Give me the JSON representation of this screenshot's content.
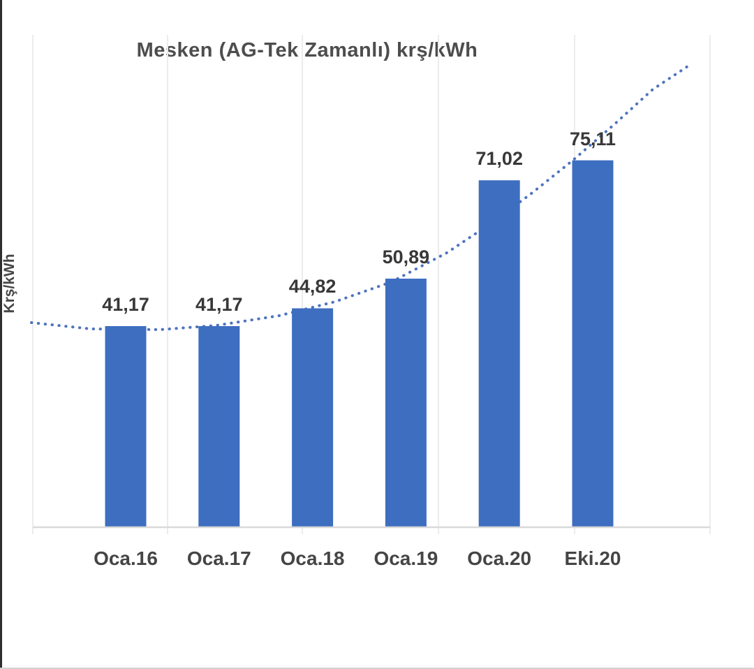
{
  "chart_data": {
    "type": "bar",
    "title": "Mesken (AG-Tek Zamanlı) krş/kWh",
    "ylabel": "Krş/kWh",
    "xlabel": "",
    "categories": [
      "Oca.16",
      "Oca.17",
      "Oca.18",
      "Oca.19",
      "Oca.20",
      "Eki.20"
    ],
    "values": [
      41.17,
      41.17,
      44.82,
      50.89,
      71.02,
      75.11
    ],
    "data_labels": [
      "41,17",
      "41,17",
      "44,82",
      "50,89",
      "71,02",
      "75,11"
    ],
    "ylim": [
      0,
      100
    ],
    "y_tick_labels_visible": false,
    "grid": "faint-vertical-gridlines",
    "legend_position": "none",
    "trendline": {
      "style": "dotted",
      "color": "#4f74be",
      "description": "Dotted trend curve through bar tops, extending steeply upward beyond the last bar to the top-right of the plot"
    },
    "colors": {
      "bar": "#3d6ec0",
      "trend": "#4f74be",
      "data_label": "#383838",
      "axis_line": "#d9d9d9",
      "gridline": "#ececec",
      "title": "#4d4d4d"
    }
  }
}
